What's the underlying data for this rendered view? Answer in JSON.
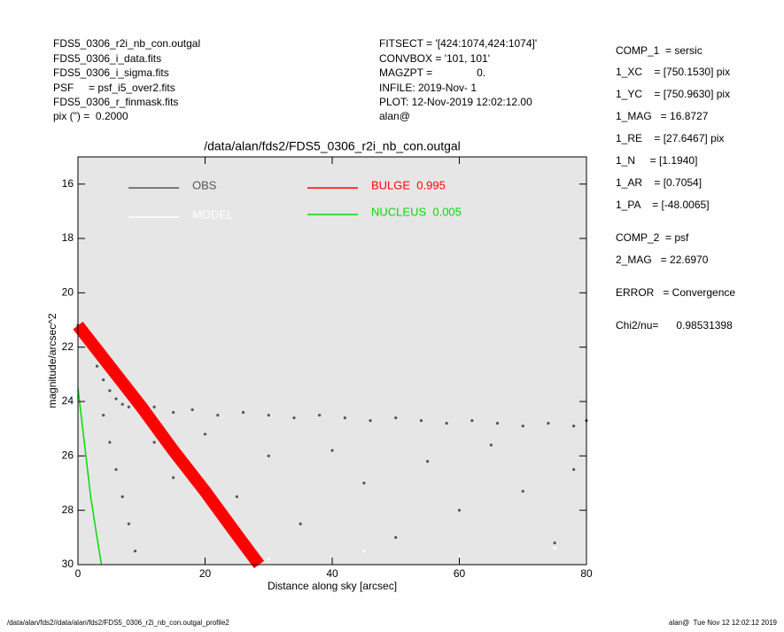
{
  "header": {
    "left": [
      "FDS5_0306_r2i_nb_con.outgal",
      "FDS5_0306_i_data.fits",
      "FDS5_0306_i_sigma.fits",
      "PSF     = psf_i5_over2.fits",
      "FDS5_0306_r_finmask.fits",
      "pix (\") =  0.2000"
    ],
    "center": [
      "FITSECT = '[424:1074,424:1074]'",
      "CONVBOX = '101, 101'",
      "MAGZPT =               0.",
      "INFILE: 2019-Nov- 1",
      "PLOT: 12-Nov-2019 12:02:12.00",
      "alan@"
    ]
  },
  "panel": [
    "COMP_1  = sersic",
    "1_XC    = [750.1530] pix",
    "1_YC    = [750.9630] pix",
    "1_MAG   = 16.8727",
    "1_RE    = [27.6467] pix",
    "1_N     = [1.1940]",
    "1_AR    = [0.7054]",
    "1_PA    = [-48.0065]",
    "COMP_2  = psf",
    "2_MAG   = 22.6970",
    "ERROR   = Convergence",
    "Chi2/nu=      0.98531398"
  ],
  "footer": {
    "left": "/data/alan/fds2//data/alan/fds2/FDS5_0306_r2i_nb_con.outgal_profile2",
    "right": "alan@  Tue Nov 12 12:02:12 2019"
  },
  "chart_data": {
    "type": "scatter",
    "title": "/data/alan/fds2/FDS5_0306_r2i_nb_con.outgal",
    "x_label": "Distance along sky [arcsec]",
    "y_label": "magnitude/arcsec^2",
    "xlim": [
      0,
      80
    ],
    "xticks": [
      0,
      20,
      40,
      60,
      80
    ],
    "ylim": [
      15,
      30
    ],
    "yticks": [
      16,
      18,
      20,
      22,
      24,
      26,
      28,
      30
    ],
    "y_inverted": true,
    "series": [
      {
        "name": "OBS",
        "color": "#555555",
        "mode": "points",
        "x": [
          0,
          1,
          2,
          3,
          4,
          5,
          6,
          7,
          8,
          10,
          12,
          15,
          18,
          22,
          26,
          30,
          34,
          38,
          42,
          46,
          50,
          54,
          58,
          62,
          66,
          70,
          74,
          78,
          80,
          4,
          5,
          6,
          7,
          8,
          9,
          12,
          15,
          20,
          25,
          30,
          35,
          40,
          45,
          50,
          55,
          60,
          65,
          70,
          75,
          78
        ],
        "values": [
          21.2,
          21.6,
          22.1,
          22.7,
          23.2,
          23.6,
          23.9,
          24.1,
          24.2,
          24.3,
          24.2,
          24.4,
          24.3,
          24.5,
          24.4,
          24.5,
          24.6,
          24.5,
          24.6,
          24.7,
          24.6,
          24.7,
          24.8,
          24.7,
          24.8,
          24.9,
          24.8,
          24.9,
          24.7,
          24.5,
          25.5,
          26.5,
          27.5,
          28.5,
          29.5,
          25.5,
          26.8,
          25.2,
          27.5,
          26,
          28.5,
          25.8,
          27,
          29,
          26.2,
          28,
          25.6,
          27.3,
          29.2,
          26.5
        ]
      },
      {
        "name": "MODEL",
        "color": "#ffffff",
        "mode": "points",
        "x": [
          30,
          45,
          60,
          75,
          80
        ],
        "values": [
          29.8,
          29.5,
          29.7,
          29.4,
          29.9
        ]
      },
      {
        "name": "BULGE  0.995",
        "color": "#ff0000",
        "mode": "band",
        "x": [
          0,
          5,
          10,
          15,
          20,
          25,
          28.5
        ],
        "values": [
          21.2,
          22.7,
          24.2,
          25.8,
          27.3,
          28.9,
          30
        ]
      },
      {
        "name": "NUCLEUS  0.005",
        "color": "#00dd00",
        "mode": "line",
        "x": [
          0,
          0.5,
          1,
          2,
          3,
          3.7
        ],
        "values": [
          23.5,
          24.5,
          25.5,
          27.5,
          29,
          30
        ]
      }
    ]
  }
}
